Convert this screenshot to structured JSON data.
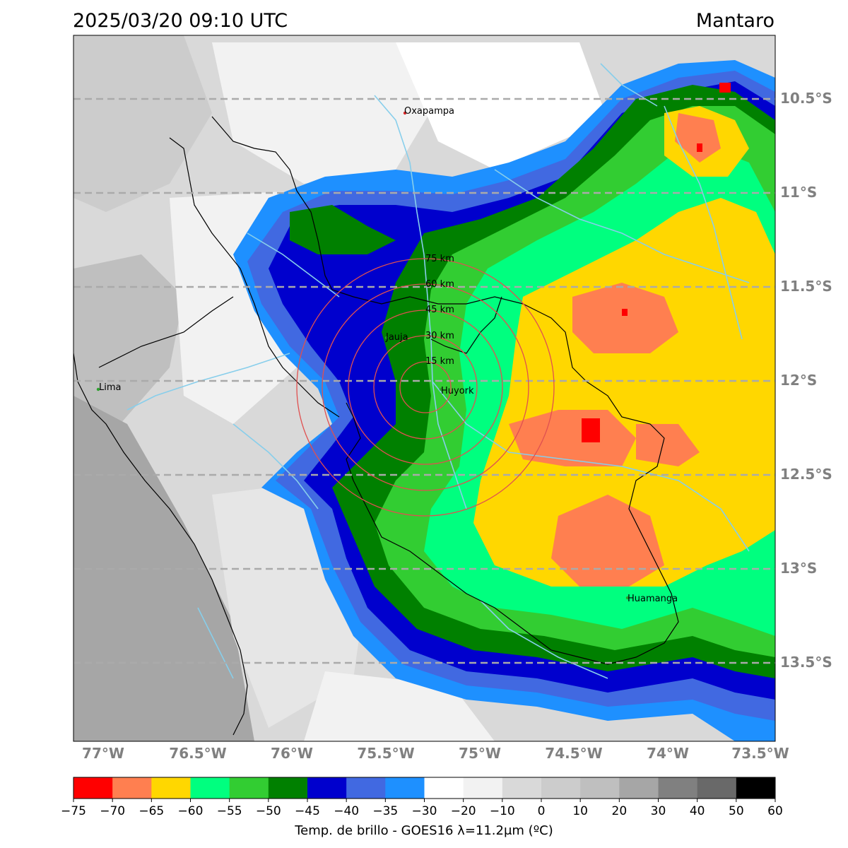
{
  "header": {
    "datetime": "2025/03/20 09:10 UTC",
    "region": "Mantaro"
  },
  "map": {
    "lon_labels": [
      "77°W",
      "76.5°W",
      "76°W",
      "75.5°W",
      "75°W",
      "74.5°W",
      "74°W",
      "73.5°W"
    ],
    "lat_labels": [
      "10.5°S",
      "11°S",
      "11.5°S",
      "12°S",
      "12.5°S",
      "13°S",
      "13.5°S"
    ],
    "cities": [
      {
        "name": "Oxapampa",
        "marker_color": "#d62728"
      },
      {
        "name": "Jauja",
        "marker_color": "#2ca02c"
      },
      {
        "name": "Lima",
        "marker_color": "#2ca02c"
      },
      {
        "name": "Huyork",
        "marker_color": "#2ca02c"
      },
      {
        "name": "Huamanga",
        "marker_color": "#2ca02c"
      }
    ],
    "range_rings": [
      "15 km",
      "30 km",
      "45 km",
      "60 km",
      "75 km"
    ],
    "ring_color": "#e05050",
    "gridline_color": "#aaaaaa"
  },
  "colorbar": {
    "label": "Temp. de brillo - GOES16 λ=11.2μm (ºC)",
    "ticks": [
      "−75",
      "−70",
      "−65",
      "−60",
      "−55",
      "−50",
      "−45",
      "−40",
      "−35",
      "−30",
      "−20",
      "−10",
      "0",
      "10",
      "20",
      "30",
      "40",
      "50",
      "60"
    ],
    "colors": [
      "#ff0000",
      "#ff7f50",
      "#ffd700",
      "#00ff7f",
      "#32cd32",
      "#008000",
      "#0000cd",
      "#4169e1",
      "#1e90ff",
      "#ffffff",
      "#f2f2f2",
      "#d9d9d9",
      "#cccccc",
      "#bfbfbf",
      "#a6a6a6",
      "#808080",
      "#696969",
      "#000000"
    ]
  }
}
